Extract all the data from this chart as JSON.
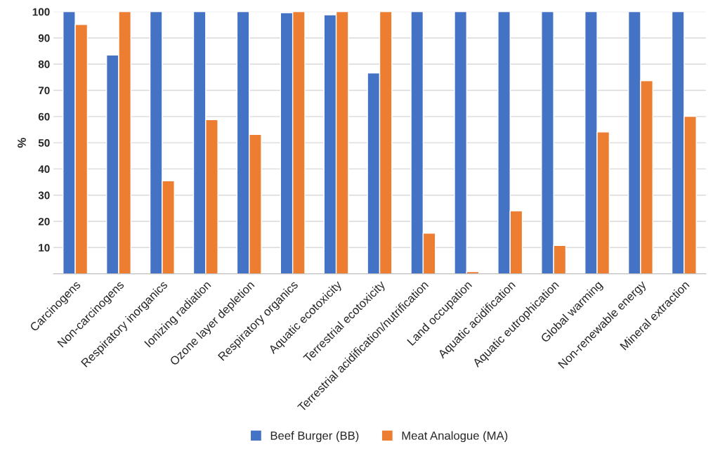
{
  "chart_data": {
    "type": "bar",
    "ylabel": "%",
    "categories": [
      "Carcinogens",
      "Non-carcinogens",
      "Respiratory inorganics",
      "Ionizing radiation",
      "Ozone layer depletion",
      "Respiratory organics",
      "Aquatic ecotoxicity",
      "Terrestrial ecotoxicity",
      "Terrestrial acidification/nutrification",
      "Land occupation",
      "Aquatic acidification",
      "Aquatic eutrophication",
      "Global warming",
      "Non-renewable energy",
      "Mineral extraction"
    ],
    "series": [
      {
        "name": "Beef Burger (BB)",
        "color": "#4472c4",
        "values": [
          100,
          83.5,
          100,
          100,
          100,
          99.6,
          98.8,
          76.6,
          100,
          100,
          100,
          100,
          100,
          100,
          100
        ]
      },
      {
        "name": "Meat Analogue (MA)",
        "color": "#ed7d31",
        "values": [
          95.1,
          100,
          35.5,
          58.8,
          53.2,
          100,
          100,
          100,
          15.5,
          0.8,
          24.0,
          10.8,
          54.1,
          73.7,
          60.1
        ]
      }
    ],
    "ylim": [
      0,
      100
    ],
    "yticks": [
      10,
      20,
      30,
      40,
      50,
      60,
      70,
      80,
      90,
      100
    ],
    "grid": "y",
    "legend": "bottom"
  }
}
